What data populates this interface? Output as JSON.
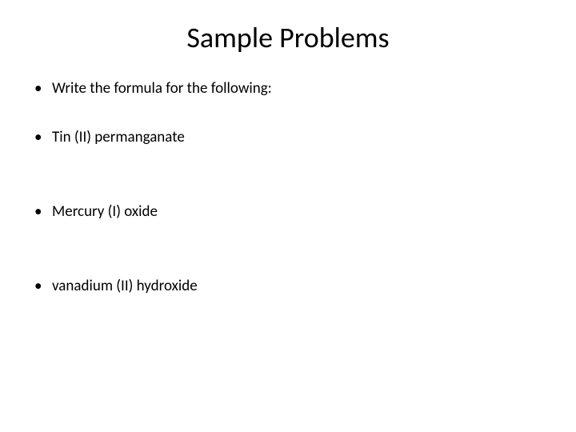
{
  "slide": {
    "title": "Sample Problems",
    "title_fontsize": 36,
    "title_color": "#000000",
    "bullets": [
      {
        "text": "Write the formula for the following:",
        "spacing": "first"
      },
      {
        "text": "Tin (II) permanganate",
        "spacing": "extra-space"
      },
      {
        "text": "Mercury (I) oxide",
        "spacing": "extra-space"
      },
      {
        "text": "vanadium (II) hydroxide",
        "spacing": "normal"
      }
    ],
    "bullet_fontsize": 19,
    "bullet_color": "#000000",
    "background_color": "#ffffff"
  }
}
